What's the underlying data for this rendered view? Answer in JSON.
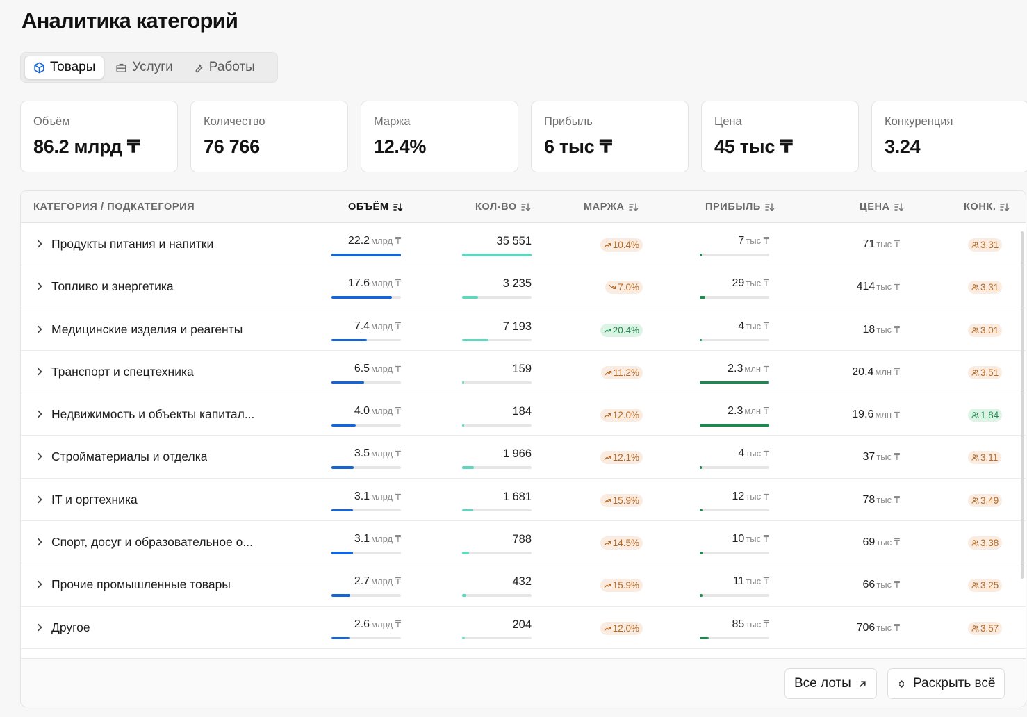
{
  "page": {
    "title": "Аналитика категорий"
  },
  "tabs": [
    {
      "label": "Товары",
      "icon": "cube-icon",
      "active": true
    },
    {
      "label": "Услуги",
      "icon": "briefcase-icon",
      "active": false
    },
    {
      "label": "Работы",
      "icon": "wrench-icon",
      "active": false
    }
  ],
  "kpis": [
    {
      "label": "Объём",
      "value": "86.2 млрд ₸"
    },
    {
      "label": "Количество",
      "value": "76 766"
    },
    {
      "label": "Маржа",
      "value": "12.4%"
    },
    {
      "label": "Прибыль",
      "value": "6 тыс ₸"
    },
    {
      "label": "Цена",
      "value": "45 тыс ₸"
    },
    {
      "label": "Конкуренция",
      "value": "3.24"
    }
  ],
  "table": {
    "headers": {
      "category": "КАТЕГОРИЯ / ПОДКАТЕГОРИЯ",
      "volume": "ОБЪЁМ",
      "qty": "КОЛ-ВО",
      "margin": "МАРЖА",
      "profit": "ПРИБЫЛЬ",
      "price": "ЦЕНА",
      "competition": "КОНК."
    },
    "rows": [
      {
        "name": "Продукты питания и напитки",
        "vol": "22.2",
        "vol_unit": "млрд ₸",
        "vol_share": 1.0,
        "qty": "35 551",
        "qty_share": 1.0,
        "margin": "10.4%",
        "margin_dir": "up",
        "margin_tone": "warn",
        "profit": "7",
        "profit_unit": "тыс ₸",
        "profit_share": 0.03,
        "price": "71",
        "price_unit": "тыс ₸",
        "conc": "3.31",
        "conc_tone": "warn"
      },
      {
        "name": "Топливо и энергетика",
        "vol": "17.6",
        "vol_unit": "млрд ₸",
        "vol_share": 0.87,
        "qty": "3 235",
        "qty_share": 0.23,
        "margin": "7.0%",
        "margin_dir": "down",
        "margin_tone": "warn",
        "profit": "29",
        "profit_unit": "тыс ₸",
        "profit_share": 0.08,
        "price": "414",
        "price_unit": "тыс ₸",
        "conc": "3.31",
        "conc_tone": "warn"
      },
      {
        "name": "Медицинские изделия и реагенты",
        "vol": "7.4",
        "vol_unit": "млрд ₸",
        "vol_share": 0.51,
        "qty": "7 193",
        "qty_share": 0.38,
        "margin": "20.4%",
        "margin_dir": "up",
        "margin_tone": "good",
        "profit": "4",
        "profit_unit": "тыс ₸",
        "profit_share": 0.02,
        "price": "18",
        "price_unit": "тыс ₸",
        "conc": "3.01",
        "conc_tone": "warn"
      },
      {
        "name": "Транспорт и спецтехника",
        "vol": "6.5",
        "vol_unit": "млрд ₸",
        "vol_share": 0.47,
        "qty": "159",
        "qty_share": 0.03,
        "margin": "11.2%",
        "margin_dir": "up",
        "margin_tone": "warn",
        "profit": "2.3",
        "profit_unit": "млн ₸",
        "profit_share": 0.99,
        "price": "20.4",
        "price_unit": "млн ₸",
        "conc": "3.51",
        "conc_tone": "warn"
      },
      {
        "name": "Недвижимость и объекты капитал...",
        "vol": "4.0",
        "vol_unit": "млрд ₸",
        "vol_share": 0.35,
        "qty": "184",
        "qty_share": 0.03,
        "margin": "12.0%",
        "margin_dir": "up",
        "margin_tone": "warn",
        "profit": "2.3",
        "profit_unit": "млн ₸",
        "profit_share": 1.0,
        "price": "19.6",
        "price_unit": "млн ₸",
        "conc": "1.84",
        "conc_tone": "good"
      },
      {
        "name": "Стройматериалы и отделка",
        "vol": "3.5",
        "vol_unit": "млрд ₸",
        "vol_share": 0.32,
        "qty": "1 966",
        "qty_share": 0.17,
        "margin": "12.1%",
        "margin_dir": "up",
        "margin_tone": "warn",
        "profit": "4",
        "profit_unit": "тыс ₸",
        "profit_share": 0.02,
        "price": "37",
        "price_unit": "тыс ₸",
        "conc": "3.11",
        "conc_tone": "warn"
      },
      {
        "name": "IT и оргтехника",
        "vol": "3.1",
        "vol_unit": "млрд ₸",
        "vol_share": 0.31,
        "qty": "1 681",
        "qty_share": 0.16,
        "margin": "15.9%",
        "margin_dir": "up",
        "margin_tone": "warn",
        "profit": "12",
        "profit_unit": "тыс ₸",
        "profit_share": 0.04,
        "price": "78",
        "price_unit": "тыс ₸",
        "conc": "3.49",
        "conc_tone": "warn"
      },
      {
        "name": "Спорт, досуг и образовательное о...",
        "vol": "3.1",
        "vol_unit": "млрд ₸",
        "vol_share": 0.31,
        "qty": "788",
        "qty_share": 0.1,
        "margin": "14.5%",
        "margin_dir": "up",
        "margin_tone": "warn",
        "profit": "10",
        "profit_unit": "тыс ₸",
        "profit_share": 0.04,
        "price": "69",
        "price_unit": "тыс ₸",
        "conc": "3.38",
        "conc_tone": "warn"
      },
      {
        "name": "Прочие промышленные товары",
        "vol": "2.7",
        "vol_unit": "млрд ₸",
        "vol_share": 0.27,
        "qty": "432",
        "qty_share": 0.06,
        "margin": "15.9%",
        "margin_dir": "up",
        "margin_tone": "warn",
        "profit": "11",
        "profit_unit": "тыс ₸",
        "profit_share": 0.04,
        "price": "66",
        "price_unit": "тыс ₸",
        "conc": "3.25",
        "conc_tone": "warn"
      },
      {
        "name": "Другое",
        "vol": "2.6",
        "vol_unit": "млрд ₸",
        "vol_share": 0.26,
        "qty": "204",
        "qty_share": 0.04,
        "margin": "12.0%",
        "margin_dir": "up",
        "margin_tone": "warn",
        "profit": "85",
        "profit_unit": "тыс ₸",
        "profit_share": 0.13,
        "price": "706",
        "price_unit": "тыс ₸",
        "conc": "3.57",
        "conc_tone": "warn"
      }
    ]
  },
  "footer": {
    "all_lots": "Все лоты",
    "expand_all": "Раскрыть всё"
  },
  "colors": {
    "volume_bar": "#1565d8",
    "qty_bar": "#5fd7bd",
    "profit_bar": "#1a8a4e",
    "warn_badge": "#faece0",
    "good_badge": "#ddf3e6"
  }
}
